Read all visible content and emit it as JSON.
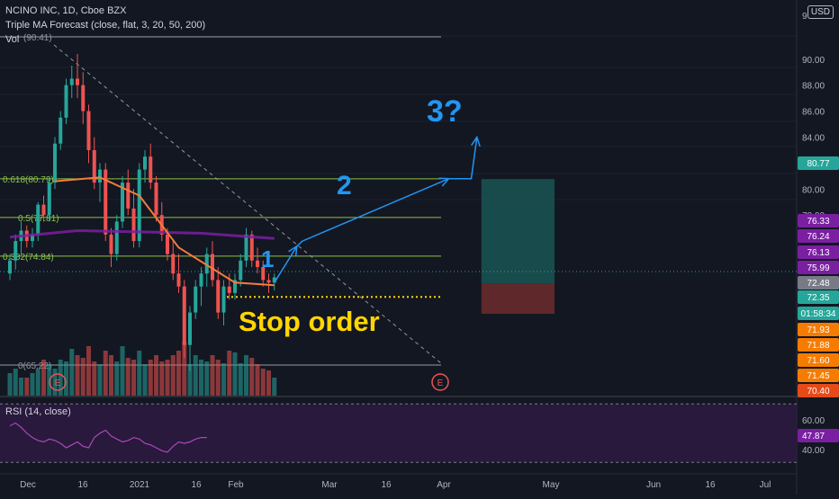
{
  "header": {
    "symbol": "NCINO INC, 1D, Cboe BZX",
    "indicator": "Triple MA Forecast (close, flat, 3, 20, 50, 200)",
    "volume": "Vol",
    "currency": "USD",
    "top_tick": "9"
  },
  "rsi_label": "RSI (14, close)",
  "annotations": {
    "stop_order": "Stop order",
    "wave1": "1",
    "wave2": "2",
    "wave3": "3?",
    "earnings": "E"
  },
  "colors": {
    "up": "#26a69a",
    "down": "#ef5350",
    "ma_fast": "#f57c3a",
    "ma_slow": "#7b1fa2",
    "projection": "#2196f3",
    "stop": "#ffd600",
    "fib": "#8bc34a",
    "target_zone": "#1b5e5a",
    "stop_zone": "#6d2b2b"
  },
  "fib_levels": [
    {
      "label": "(90.41)",
      "value": 90.41
    },
    {
      "label": "0.618(80.79)",
      "value": 80.79
    },
    {
      "label": "0.5(77.81)",
      "value": 77.81
    },
    {
      "label": "0.382(74.84)",
      "value": 74.84
    },
    {
      "label": "0(65.22)",
      "value": 65.22
    }
  ],
  "x_axis": [
    "Dec",
    "16",
    "2021",
    "16",
    "Feb",
    "Mar",
    "16",
    "Apr",
    "May",
    "Jun",
    "16",
    "Jul"
  ],
  "rsi_axis": [
    "60.00",
    "47.87",
    "40.00"
  ],
  "price_badges": [
    "80.77",
    "76.33",
    "76.24",
    "76.13",
    "75.99",
    "72.48",
    "72.35",
    "01:58:34",
    "71.93",
    "71.88",
    "71.60",
    "71.45",
    "70.40"
  ],
  "chart_data": {
    "type": "candlestick",
    "title": "NCINO INC, 1D, Cboe BZX",
    "y_ticks": [
      90,
      88,
      86,
      84,
      82,
      80,
      78
    ],
    "candles": [
      [
        73.5,
        75,
        73,
        74.5
      ],
      [
        74.5,
        76.5,
        73.8,
        76
      ],
      [
        76,
        77.5,
        75,
        76.8
      ],
      [
        76.8,
        77.2,
        75.5,
        76
      ],
      [
        76,
        77,
        75.5,
        76.5
      ],
      [
        76.5,
        79,
        76,
        78.8
      ],
      [
        78.8,
        79.5,
        77.5,
        78
      ],
      [
        78,
        81,
        77.5,
        80.5
      ],
      [
        80.5,
        84,
        80,
        83.5
      ],
      [
        83.5,
        86,
        83,
        85.5
      ],
      [
        85.5,
        88.5,
        85,
        88
      ],
      [
        88,
        89.5,
        87,
        88.5
      ],
      [
        88.5,
        90.4,
        87,
        88
      ],
      [
        88,
        89,
        85,
        86
      ],
      [
        86,
        86.5,
        82,
        83
      ],
      [
        83,
        84,
        80,
        80.5
      ],
      [
        80.5,
        82,
        79,
        81.5
      ],
      [
        81.5,
        82,
        76,
        76.5
      ],
      [
        76.5,
        77,
        74,
        75
      ],
      [
        75,
        78,
        74.5,
        77.5
      ],
      [
        77.5,
        81,
        77,
        80.5
      ],
      [
        80.5,
        81.5,
        78,
        78.5
      ],
      [
        78.5,
        80,
        75.5,
        76
      ],
      [
        76,
        82,
        75.5,
        81.5
      ],
      [
        81.5,
        83,
        80.5,
        82.5
      ],
      [
        82.5,
        83.5,
        80,
        80.5
      ],
      [
        80.5,
        81,
        77.5,
        78
      ],
      [
        78,
        79,
        76,
        76.5
      ],
      [
        76.5,
        77,
        74.5,
        75
      ],
      [
        75,
        76,
        73,
        73.5
      ],
      [
        73.5,
        75,
        72,
        72.5
      ],
      [
        72.5,
        73,
        67,
        68
      ],
      [
        68,
        71,
        66,
        70.5
      ],
      [
        70.5,
        73,
        70,
        72.5
      ],
      [
        72.5,
        74,
        71,
        73.5
      ],
      [
        73.5,
        75.5,
        72.5,
        75
      ],
      [
        75,
        76,
        72.5,
        73
      ],
      [
        73,
        74,
        70,
        70.5
      ],
      [
        70.5,
        73,
        69.5,
        72.5
      ],
      [
        72.5,
        73.5,
        71.5,
        72
      ],
      [
        72,
        73.5,
        71.5,
        73
      ],
      [
        73,
        75,
        72.5,
        74.5
      ],
      [
        74.5,
        77,
        74,
        76.5
      ],
      [
        76.5,
        76.8,
        74,
        74.5
      ],
      [
        74.5,
        75.5,
        73.5,
        74
      ],
      [
        74,
        74.5,
        72.5,
        73
      ],
      [
        73,
        73.5,
        72,
        72.8
      ],
      [
        72.8,
        73.5,
        72.2,
        73.2
      ]
    ],
    "volume": [
      25,
      30,
      20,
      20,
      25,
      30,
      40,
      35,
      30,
      40,
      38,
      52,
      45,
      42,
      55,
      38,
      35,
      50,
      45,
      38,
      55,
      42,
      40,
      50,
      35,
      40,
      45,
      38,
      40,
      45,
      50,
      60,
      35,
      45,
      40,
      38,
      45,
      40,
      36,
      50,
      48,
      36,
      45,
      42,
      35,
      30,
      28,
      20
    ],
    "ma_fast": [
      [
        8,
        80.6
      ],
      [
        16,
        80.9
      ],
      [
        23,
        79.5
      ],
      [
        30,
        75.5
      ],
      [
        40,
        72.8
      ],
      [
        47,
        72.6
      ]
    ],
    "ma_slow": [
      [
        0,
        76.3
      ],
      [
        12,
        76.8
      ],
      [
        24,
        76.7
      ],
      [
        34,
        76.6
      ],
      [
        47,
        76.2
      ]
    ],
    "projection": [
      [
        47,
        72.8
      ],
      [
        51,
        75.6
      ],
      [
        52,
        76.0
      ],
      [
        78,
        80.8
      ],
      [
        82,
        80.8
      ],
      [
        83,
        84.0
      ]
    ],
    "stop_level": 71.7,
    "position": {
      "start": 83.8,
      "end": 96.8,
      "entry": 72.7,
      "target": 80.77,
      "stop": 70.4
    },
    "rsi": [
      55,
      57,
      54,
      50,
      47,
      45,
      44,
      46,
      45,
      43,
      40,
      42,
      44,
      41,
      40,
      47,
      50,
      52,
      48,
      46,
      44,
      45,
      47,
      46,
      43,
      42,
      40,
      38,
      37,
      41,
      44,
      43,
      44,
      46,
      47,
      47
    ]
  }
}
